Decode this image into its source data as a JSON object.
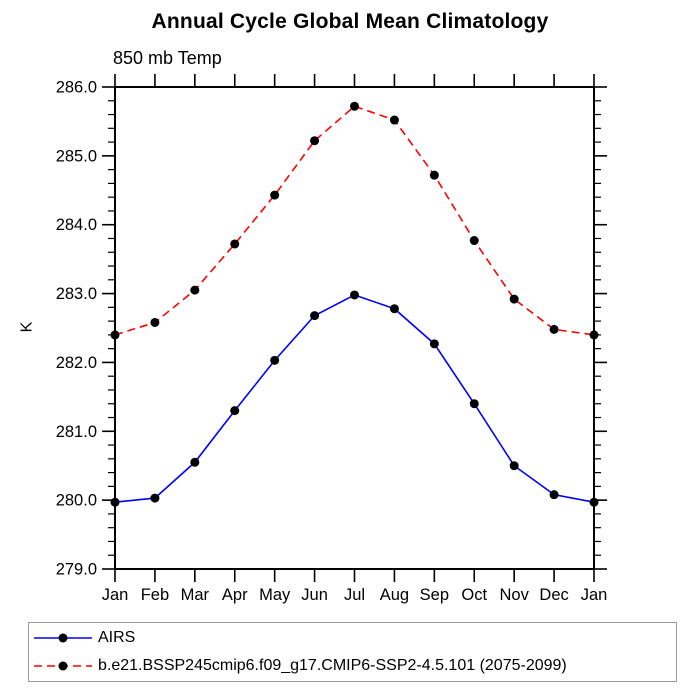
{
  "chart_data": {
    "type": "line",
    "title": "Annual Cycle Global Mean Climatology",
    "subtitle": "850 mb Temp",
    "ylabel": "K",
    "x_categories": [
      "Jan",
      "Feb",
      "Mar",
      "Apr",
      "May",
      "Jun",
      "Jul",
      "Aug",
      "Sep",
      "Oct",
      "Nov",
      "Dec",
      "Jan"
    ],
    "ylim": [
      279.0,
      286.0
    ],
    "ytick_step": 1.0,
    "ytick_minor_step": 0.2,
    "ytick_labels": [
      "279.0",
      "280.0",
      "281.0",
      "282.0",
      "283.0",
      "284.0",
      "285.0",
      "286.0"
    ],
    "grid": false,
    "legend_position": "bottom-left",
    "marker_color": "#000000",
    "series": [
      {
        "name": "AIRS",
        "color": "#0000ff",
        "style": "solid",
        "marker": "filled-circle",
        "values": [
          279.97,
          280.03,
          280.55,
          281.3,
          282.03,
          282.68,
          282.98,
          282.78,
          282.27,
          281.4,
          280.5,
          280.08,
          279.97
        ]
      },
      {
        "name": "b.e21.BSSP245cmip6.f09_g17.CMIP6-SSP2-4.5.101 (2075-2099)",
        "color": "#ff0000",
        "style": "dashed",
        "marker": "filled-circle",
        "values": [
          282.4,
          282.58,
          283.05,
          283.72,
          284.43,
          285.22,
          285.72,
          285.52,
          284.72,
          283.77,
          282.92,
          282.48,
          282.4
        ]
      }
    ]
  }
}
